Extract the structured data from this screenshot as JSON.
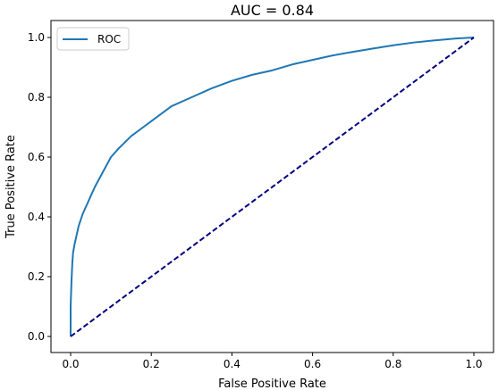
{
  "chart_data": {
    "type": "line",
    "title": "AUC = 0.84",
    "xlabel": "False Positive Rate",
    "ylabel": "True Positive Rate",
    "xlim": [
      0,
      1
    ],
    "ylim": [
      0,
      1
    ],
    "xticks": [
      "0.0",
      "0.2",
      "0.4",
      "0.6",
      "0.8",
      "1.0"
    ],
    "yticks": [
      "0.0",
      "0.2",
      "0.4",
      "0.6",
      "0.8",
      "1.0"
    ],
    "grid": false,
    "legend_position": "top-left",
    "series": [
      {
        "name": "ROC",
        "color": "#1f77b4",
        "style": "solid",
        "x": [
          0.0,
          0.0,
          0.002,
          0.004,
          0.006,
          0.01,
          0.015,
          0.02,
          0.03,
          0.04,
          0.05,
          0.06,
          0.08,
          0.1,
          0.12,
          0.15,
          0.18,
          0.2,
          0.25,
          0.3,
          0.35,
          0.4,
          0.45,
          0.5,
          0.55,
          0.6,
          0.65,
          0.7,
          0.75,
          0.8,
          0.85,
          0.9,
          0.95,
          1.0
        ],
        "y": [
          0.0,
          0.1,
          0.18,
          0.24,
          0.28,
          0.31,
          0.34,
          0.37,
          0.41,
          0.44,
          0.47,
          0.5,
          0.55,
          0.6,
          0.63,
          0.67,
          0.7,
          0.72,
          0.77,
          0.8,
          0.83,
          0.855,
          0.875,
          0.89,
          0.91,
          0.925,
          0.94,
          0.952,
          0.963,
          0.974,
          0.983,
          0.99,
          0.996,
          1.0
        ]
      },
      {
        "name": "",
        "color": "#000080",
        "style": "dashed",
        "x": [
          0.0,
          1.0
        ],
        "y": [
          0.0,
          1.0
        ]
      }
    ]
  }
}
